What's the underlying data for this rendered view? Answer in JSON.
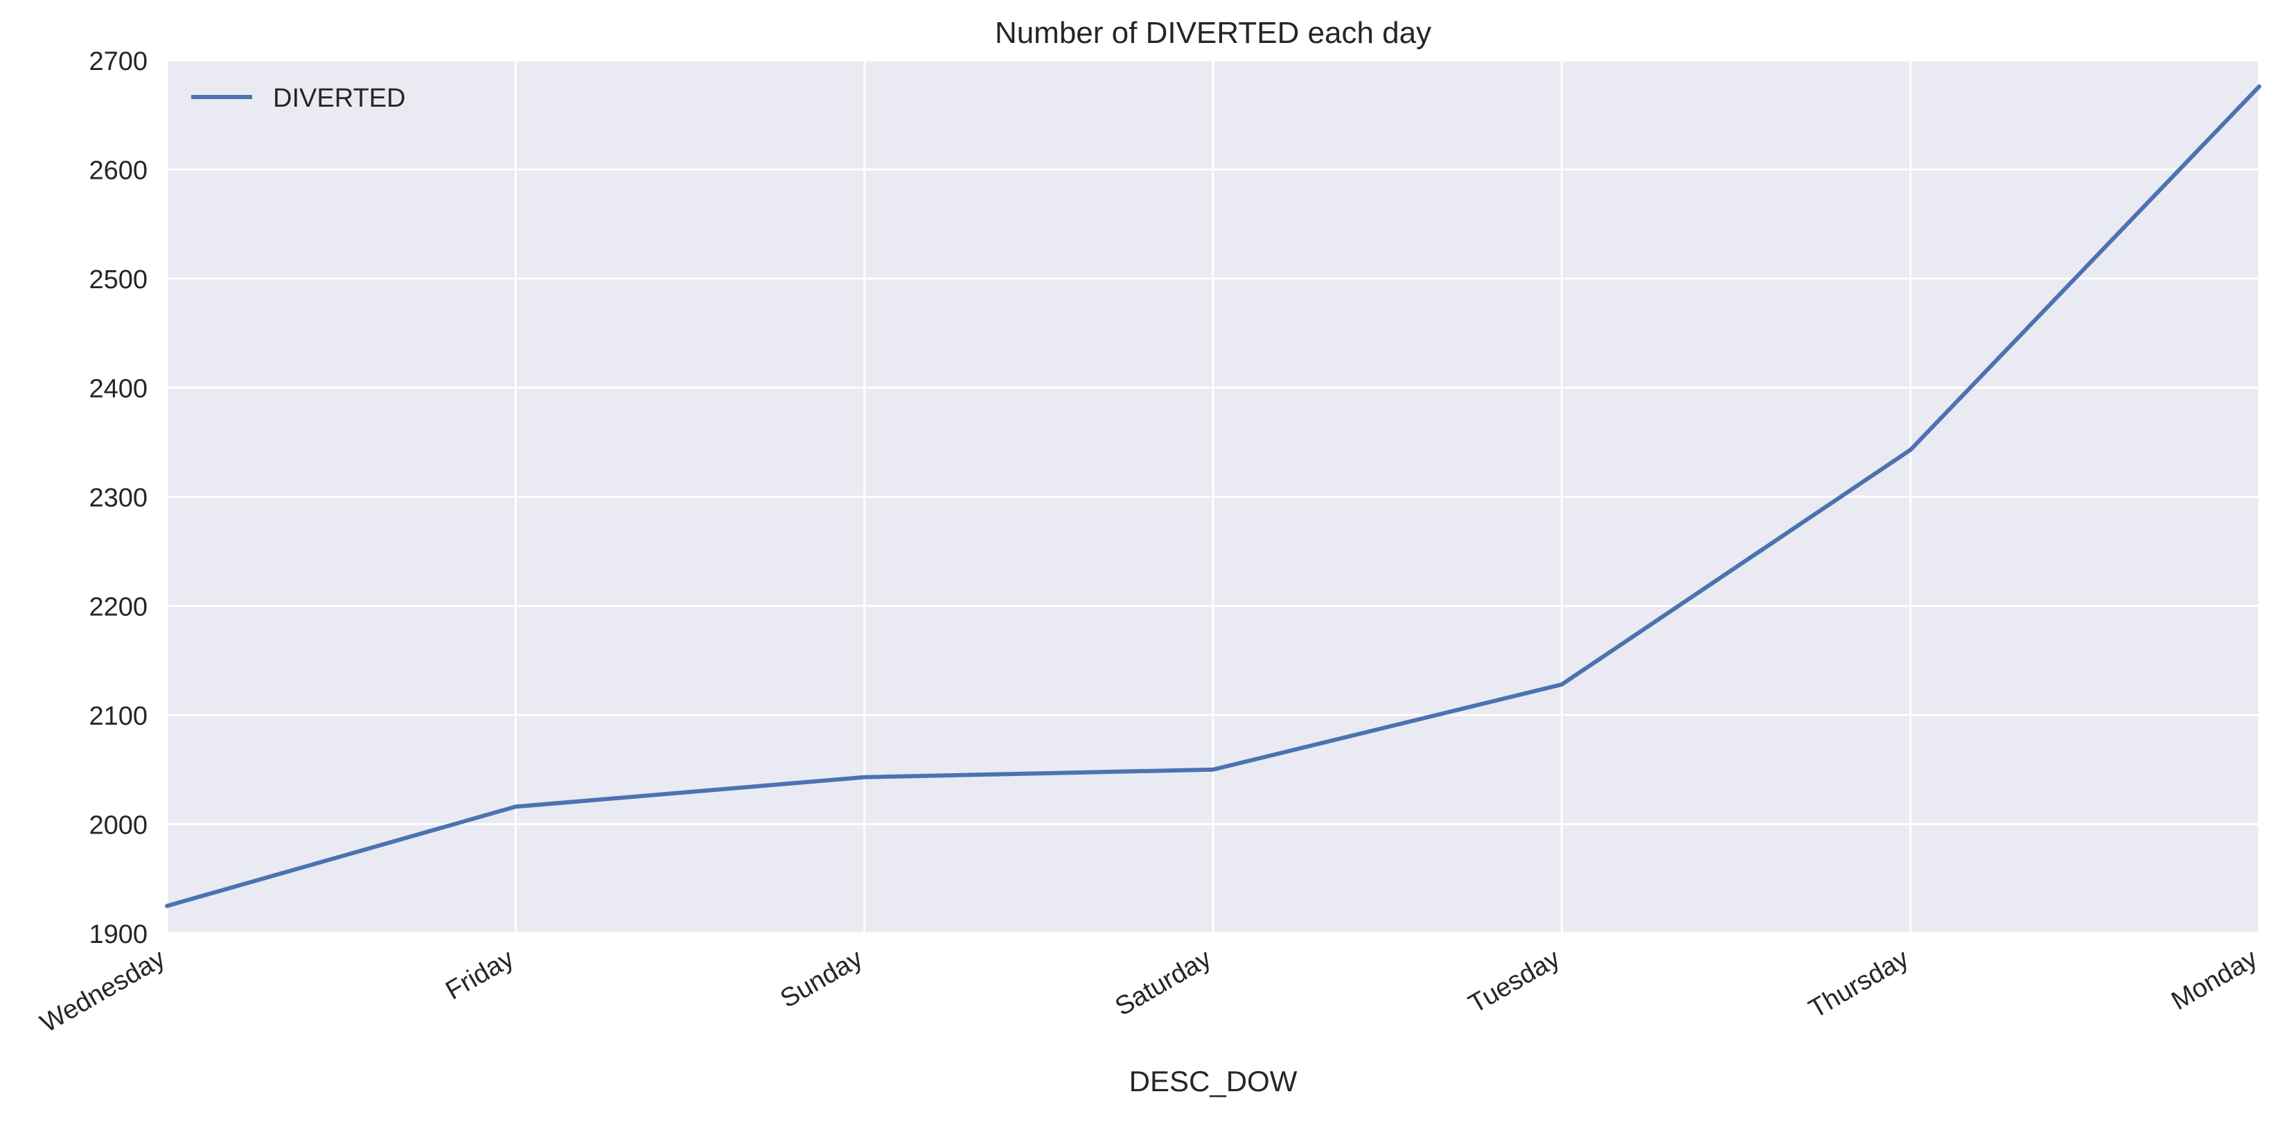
{
  "chart_data": {
    "type": "line",
    "title": "Number of DIVERTED each day",
    "xlabel": "DESC_DOW",
    "ylabel": "",
    "categories": [
      "Wednesday",
      "Friday",
      "Sunday",
      "Saturday",
      "Tuesday",
      "Thursday",
      "Monday"
    ],
    "series": [
      {
        "name": "DIVERTED",
        "values": [
          1925,
          2016,
          2043,
          2050,
          2128,
          2343,
          2676
        ],
        "color": "#4c72b0"
      }
    ],
    "ylim": [
      1900,
      2700
    ],
    "yticks": [
      1900,
      2000,
      2100,
      2200,
      2300,
      2400,
      2500,
      2600,
      2700
    ],
    "grid": true,
    "legend": "top-left",
    "colors": {
      "plot_background": "#eaeaf2",
      "grid": "#ffffff",
      "text": "#262626"
    }
  }
}
